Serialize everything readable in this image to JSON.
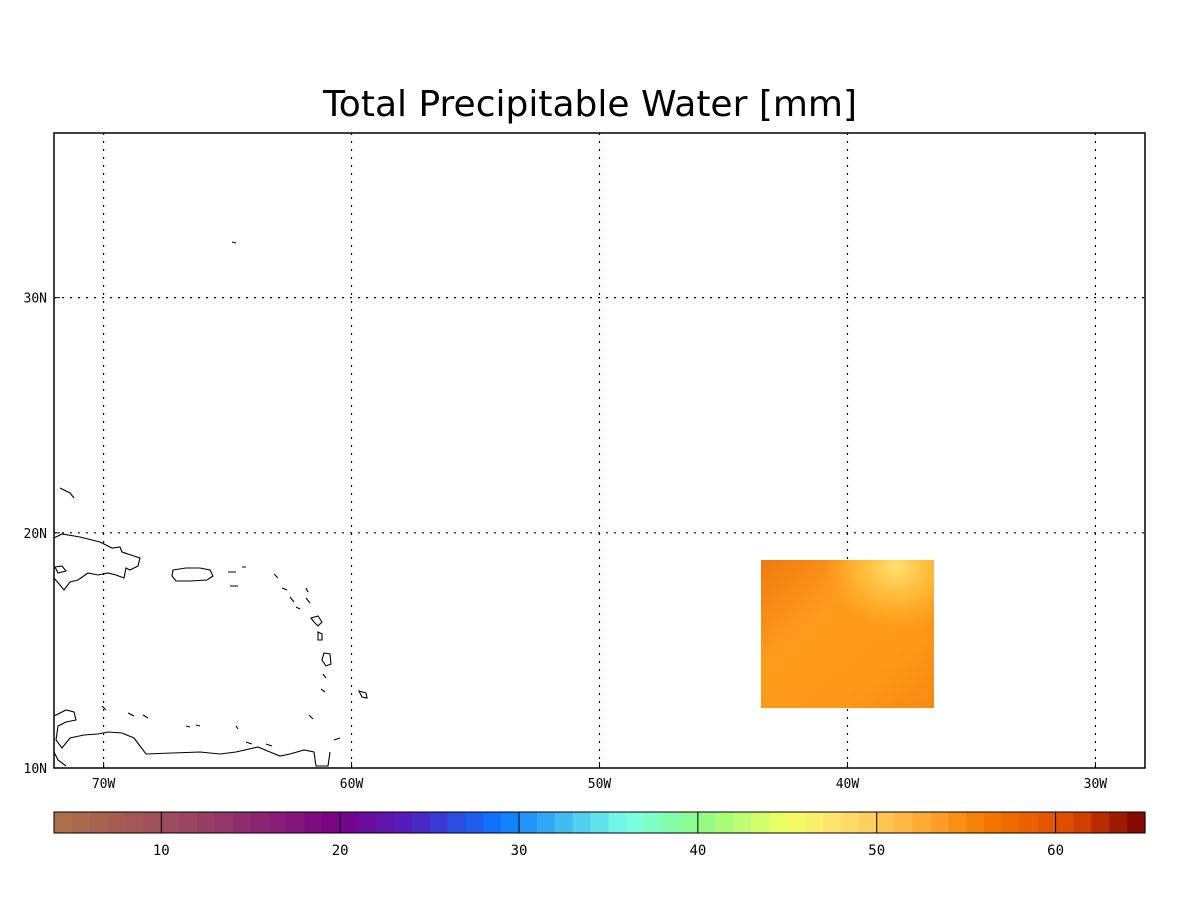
{
  "title": "Total Precipitable Water [mm]",
  "map": {
    "lon_range": [
      -72,
      -28
    ],
    "lat_range": [
      10,
      37
    ],
    "lon_ticks": [
      {
        "value": -70,
        "label": "70W"
      },
      {
        "value": -60,
        "label": "60W"
      },
      {
        "value": -50,
        "label": "50W"
      },
      {
        "value": -40,
        "label": "40W"
      },
      {
        "value": -30,
        "label": "30W"
      }
    ],
    "lat_ticks": [
      {
        "value": 30,
        "label": "30N"
      },
      {
        "value": 20,
        "label": "20N"
      },
      {
        "value": 10,
        "label": "10N"
      }
    ],
    "grid": true,
    "grid_style": "dotted",
    "coastlines": true,
    "data_region": {
      "lon": [
        -43.5,
        -36.5
      ],
      "lat": [
        12.5,
        18.8
      ],
      "value_range_mm": [
        48,
        58
      ],
      "description_colors": [
        "#f58a10",
        "#ffa51e",
        "#ffbf3c",
        "#ffe070"
      ]
    }
  },
  "colorbar": {
    "min": 4,
    "max": 65,
    "ticks": [
      "10",
      "20",
      "30",
      "40",
      "50",
      "60"
    ],
    "tick_values": [
      10,
      20,
      30,
      40,
      50,
      60
    ],
    "color_stops": [
      {
        "value": 4,
        "color": "#ae7248"
      },
      {
        "value": 12,
        "color": "#9a4262"
      },
      {
        "value": 20,
        "color": "#780086"
      },
      {
        "value": 24,
        "color": "#5020c0"
      },
      {
        "value": 29,
        "color": "#0a78ff"
      },
      {
        "value": 36,
        "color": "#78ffe6"
      },
      {
        "value": 40,
        "color": "#8cfa86"
      },
      {
        "value": 45,
        "color": "#f0ff60"
      },
      {
        "value": 48,
        "color": "#ffe070"
      },
      {
        "value": 52,
        "color": "#ffb23c"
      },
      {
        "value": 56,
        "color": "#f57a00"
      },
      {
        "value": 61,
        "color": "#dc4800"
      },
      {
        "value": 65,
        "color": "#780000"
      }
    ]
  }
}
